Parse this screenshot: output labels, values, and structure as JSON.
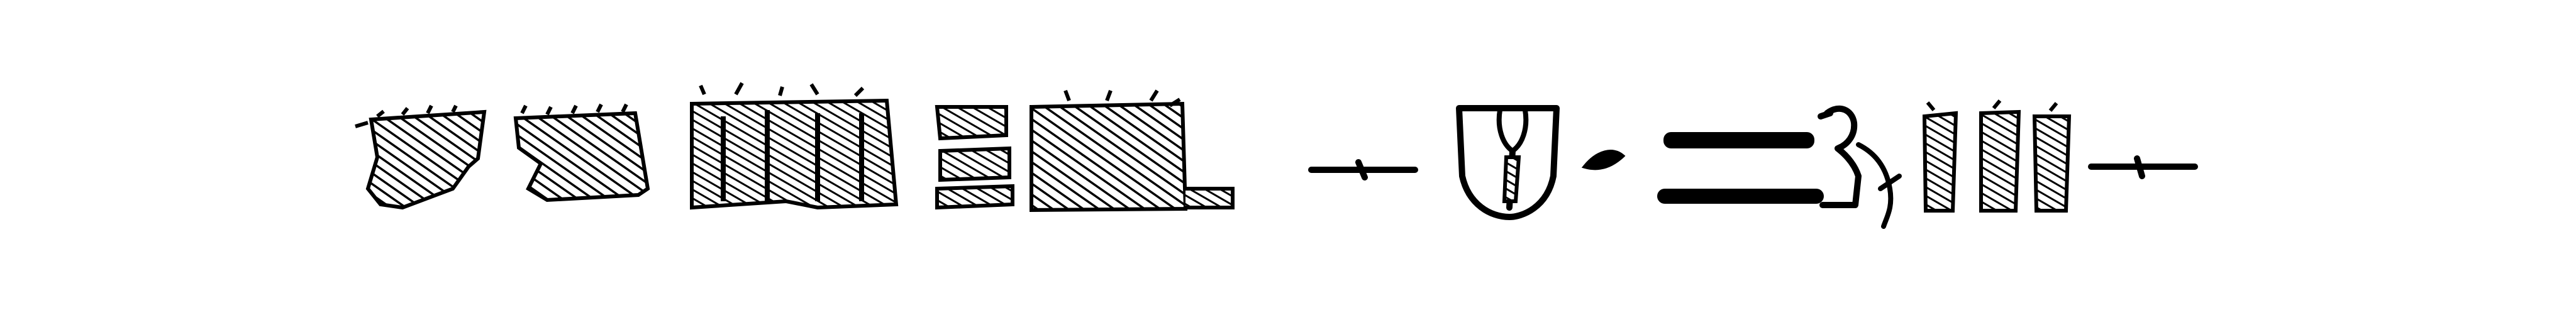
{
  "image": {
    "ink_color": "#000000",
    "background_color": "#ffffff",
    "glyphs": [
      "hatched-lacuna-sign",
      "hatched-lacuna-sign",
      "hatched-damaged-glyph-group",
      "hatched-damaged-glyph-group",
      "hatched-damaged-glyph-group",
      "verse-point-separator",
      "nw-pot-sign",
      "r-mouth-sign",
      "n-water-sign",
      "seated-figure-sign",
      "hatched-damaged-glyph-group",
      "verse-point-separator"
    ]
  }
}
